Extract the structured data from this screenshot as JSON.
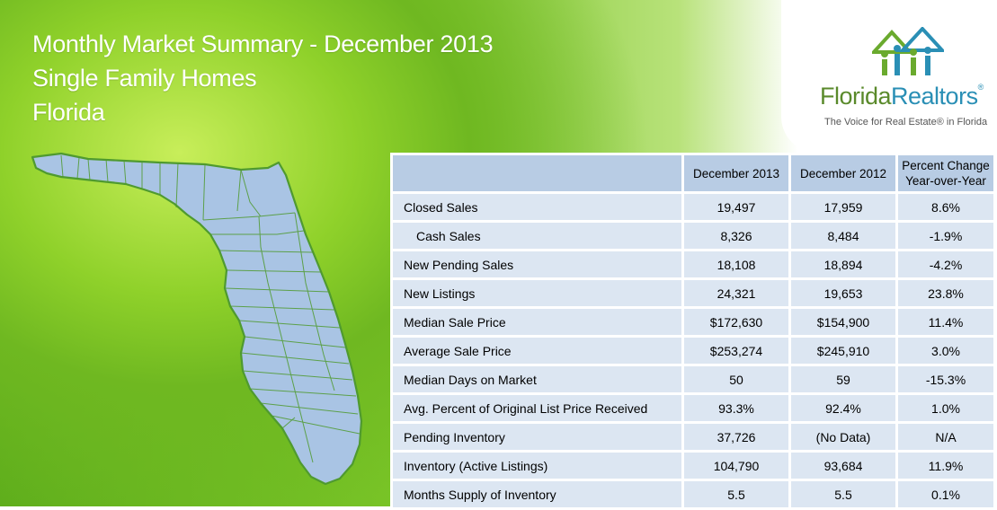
{
  "header": {
    "title_line1": "Monthly Market Summary - December 2013",
    "title_line2": "Single Family Homes",
    "title_line3": "Florida"
  },
  "logo": {
    "name_part1": "Florida",
    "name_part2": "Realtors",
    "tagline": "The Voice for Real Estate® in Florida"
  },
  "table": {
    "columns": [
      "December 2013",
      "December 2012",
      "Percent Change",
      "Year-over-Year"
    ],
    "rows": [
      {
        "label": "Closed Sales",
        "cur": "19,497",
        "prev": "17,959",
        "change": "8.6%"
      },
      {
        "label": "Cash Sales",
        "cur": "8,326",
        "prev": "8,484",
        "change": "-1.9%"
      },
      {
        "label": "New Pending Sales",
        "cur": "18,108",
        "prev": "18,894",
        "change": "-4.2%"
      },
      {
        "label": "New Listings",
        "cur": "24,321",
        "prev": "19,653",
        "change": "23.8%"
      },
      {
        "label": "Median Sale Price",
        "cur": "$172,630",
        "prev": "$154,900",
        "change": "11.4%"
      },
      {
        "label": "Average Sale Price",
        "cur": "$253,274",
        "prev": "$245,910",
        "change": "3.0%"
      },
      {
        "label": "Median Days on Market",
        "cur": "50",
        "prev": "59",
        "change": "-15.3%"
      },
      {
        "label": "Avg. Percent of Original List Price Received",
        "cur": "93.3%",
        "prev": "92.4%",
        "change": "1.0%"
      },
      {
        "label": "Pending Inventory",
        "cur": "37,726",
        "prev": "(No Data)",
        "change": "N/A"
      },
      {
        "label": "Inventory (Active Listings)",
        "cur": "104,790",
        "prev": "93,684",
        "change": "11.9%"
      },
      {
        "label": "Months Supply of Inventory",
        "cur": "5.5",
        "prev": "5.5",
        "change": "0.1%"
      }
    ]
  },
  "colors": {
    "header_cell": "#b8cce4",
    "body_cell": "#dce6f2",
    "map_fill": "#a9c4e4",
    "map_border": "#4f9a2f"
  }
}
